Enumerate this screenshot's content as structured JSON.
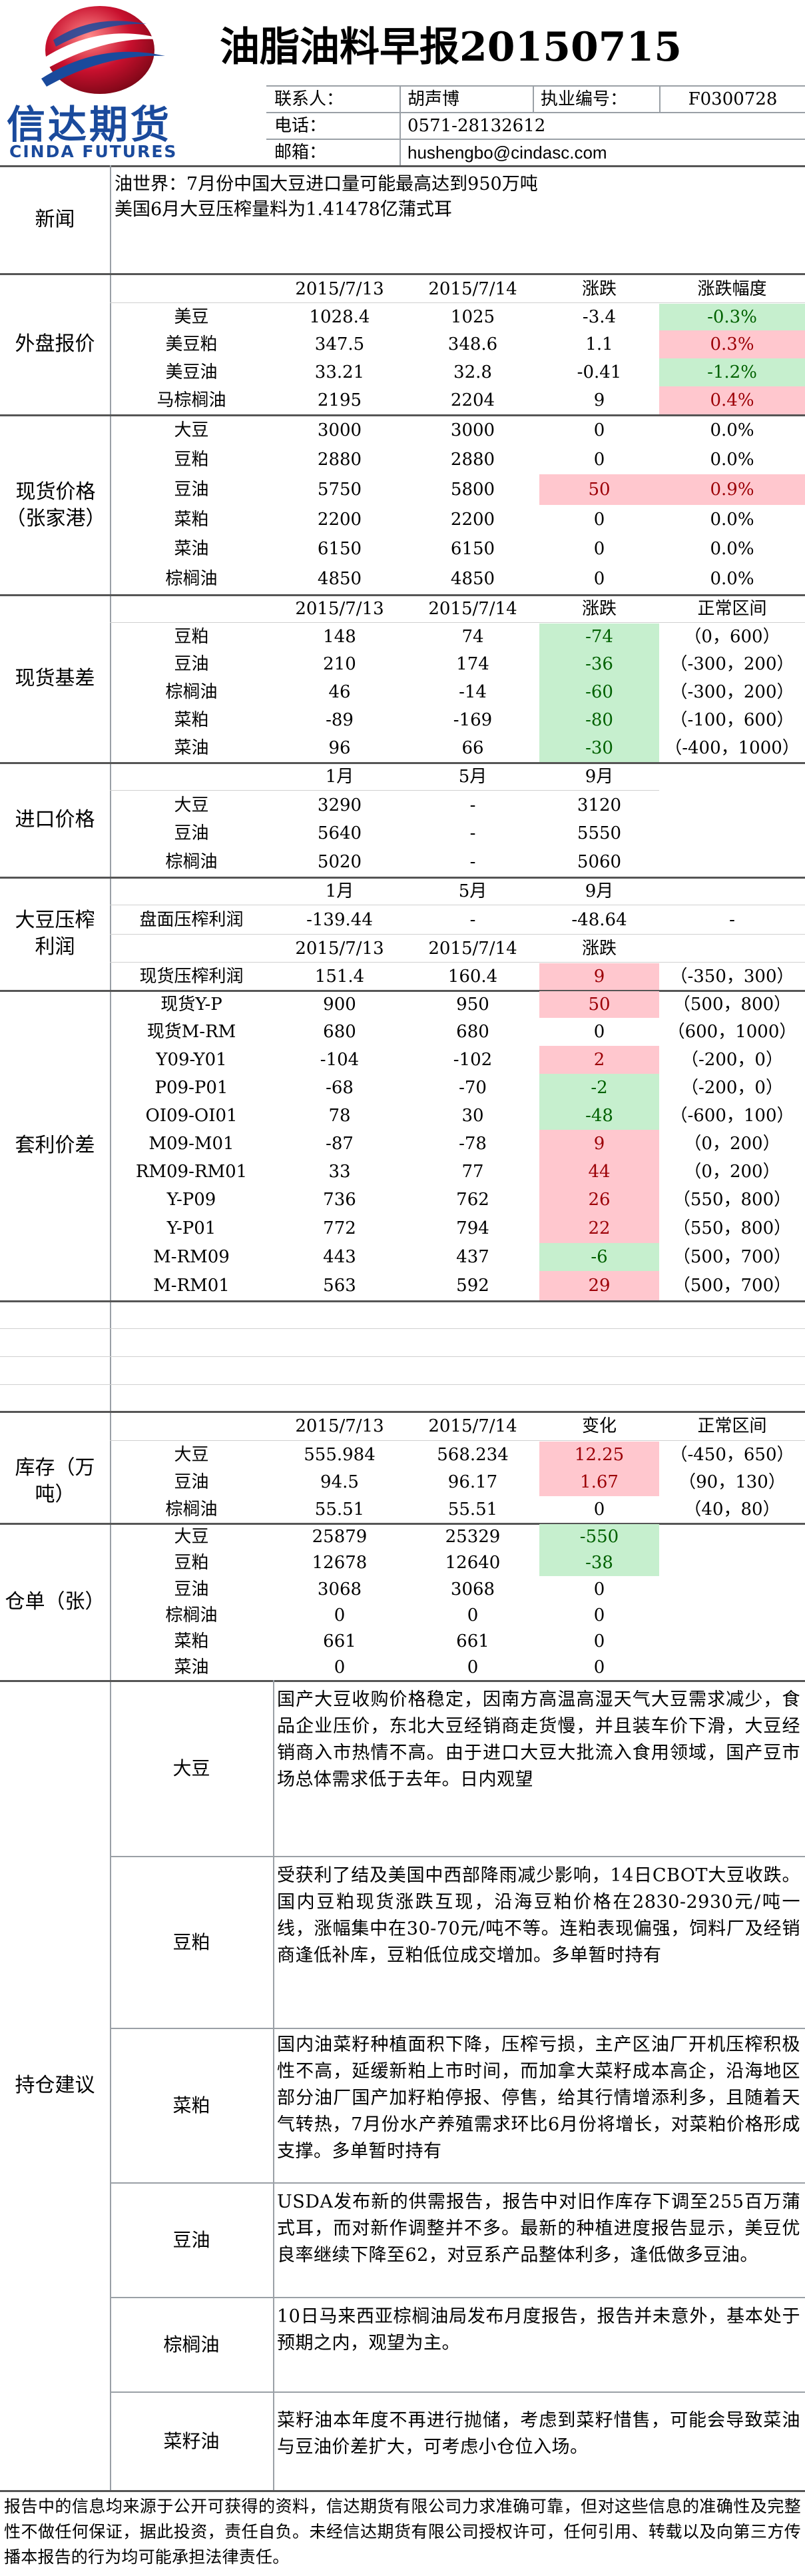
{
  "header": {
    "title": "油脂油料早报20150715",
    "logo_cn": "信达期货",
    "logo_en": "CINDA FUTURES",
    "contact_label": "联系人：",
    "contact_name": "胡声博",
    "license_label": "执业编号：",
    "license_no": "F0300728",
    "phone_label": "电话：",
    "phone": "0571-28132612",
    "email_label": "邮箱：",
    "email": "hushengbo@cindasc.com"
  },
  "news": {
    "label": "新闻",
    "lines": [
      "油世界：7月份中国大豆进口量可能最高达到950万吨",
      "美国6月大豆压榨量料为1.41478亿蒲式耳"
    ]
  },
  "external": {
    "label": "外盘报价",
    "headers": [
      "2015/7/13",
      "2015/7/14",
      "涨跌",
      "涨跌幅度"
    ],
    "rows": [
      {
        "name": "美豆",
        "d1": "1028.4",
        "d2": "1025",
        "chg": "-3.4",
        "pct": "-0.3%"
      },
      {
        "name": "美豆粕",
        "d1": "347.5",
        "d2": "348.6",
        "chg": "1.1",
        "pct": "0.3%"
      },
      {
        "name": "美豆油",
        "d1": "33.21",
        "d2": "32.8",
        "chg": "-0.41",
        "pct": "-1.2%"
      },
      {
        "name": "马棕榈油",
        "d1": "2195",
        "d2": "2204",
        "chg": "9",
        "pct": "0.4%"
      }
    ]
  },
  "spot": {
    "label": "现货价格（张家港）",
    "rows": [
      {
        "name": "大豆",
        "d1": "3000",
        "d2": "3000",
        "chg": "0",
        "pct": "0.0%"
      },
      {
        "name": "豆粕",
        "d1": "2880",
        "d2": "2880",
        "chg": "0",
        "pct": "0.0%"
      },
      {
        "name": "豆油",
        "d1": "5750",
        "d2": "5800",
        "chg": "50",
        "pct": "0.9%"
      },
      {
        "name": "菜粕",
        "d1": "2200",
        "d2": "2200",
        "chg": "0",
        "pct": "0.0%"
      },
      {
        "name": "菜油",
        "d1": "6150",
        "d2": "6150",
        "chg": "0",
        "pct": "0.0%"
      },
      {
        "name": "棕榈油",
        "d1": "4850",
        "d2": "4850",
        "chg": "0",
        "pct": "0.0%"
      }
    ]
  },
  "basis": {
    "label": "现货基差",
    "headers": [
      "2015/7/13",
      "2015/7/14",
      "涨跌",
      "正常区间"
    ],
    "rows": [
      {
        "name": "豆粕",
        "d1": "148",
        "d2": "74",
        "chg": "-74",
        "range": "（0，600）"
      },
      {
        "name": "豆油",
        "d1": "210",
        "d2": "174",
        "chg": "-36",
        "range": "（-300，200）"
      },
      {
        "name": "棕榈油",
        "d1": "46",
        "d2": "-14",
        "chg": "-60",
        "range": "（-300，200）"
      },
      {
        "name": "菜粕",
        "d1": "-89",
        "d2": "-169",
        "chg": "-80",
        "range": "（-100，600）"
      },
      {
        "name": "菜油",
        "d1": "96",
        "d2": "66",
        "chg": "-30",
        "range": "（-400，1000）"
      }
    ]
  },
  "import": {
    "label": "进口价格",
    "headers": [
      "1月",
      "5月",
      "9月"
    ],
    "rows": [
      {
        "name": "大豆",
        "m1": "3290",
        "m5": "-",
        "m9": "3120"
      },
      {
        "name": "豆油",
        "m1": "5640",
        "m5": "-",
        "m9": "5550"
      },
      {
        "name": "棕榈油",
        "m1": "5020",
        "m5": "-",
        "m9": "5060"
      }
    ]
  },
  "crush": {
    "label": "大豆压榨利润",
    "headers1": [
      "1月",
      "5月",
      "9月"
    ],
    "row1": {
      "name": "盘面压榨利润",
      "m1": "-139.44",
      "m5": "-",
      "m9": "-48.64",
      "extra": "-"
    },
    "headers2": [
      "2015/7/13",
      "2015/7/14",
      "涨跌"
    ],
    "row2": {
      "name": "现货压榨利润",
      "d1": "151.4",
      "d2": "160.4",
      "chg": "9",
      "range": "（-350，300）"
    }
  },
  "spread": {
    "label": "套利价差",
    "rows": [
      {
        "name": "现货Y-P",
        "d1": "900",
        "d2": "950",
        "chg": "50",
        "range": "（500，800）"
      },
      {
        "name": "现货M-RM",
        "d1": "680",
        "d2": "680",
        "chg": "0",
        "range": "（600，1000）"
      },
      {
        "name": "Y09-Y01",
        "d1": "-104",
        "d2": "-102",
        "chg": "2",
        "range": "（-200，0）"
      },
      {
        "name": "P09-P01",
        "d1": "-68",
        "d2": "-70",
        "chg": "-2",
        "range": "（-200，0）"
      },
      {
        "name": "OI09-OI01",
        "d1": "78",
        "d2": "30",
        "chg": "-48",
        "range": "（-600，100）"
      },
      {
        "name": "M09-M01",
        "d1": "-87",
        "d2": "-78",
        "chg": "9",
        "range": "（0，200）"
      },
      {
        "name": "RM09-RM01",
        "d1": "33",
        "d2": "77",
        "chg": "44",
        "range": "（0，200）"
      },
      {
        "name": "Y-P09",
        "d1": "736",
        "d2": "762",
        "chg": "26",
        "range": "（550，800）"
      },
      {
        "name": "Y-P01",
        "d1": "772",
        "d2": "794",
        "chg": "22",
        "range": "（550，800）"
      },
      {
        "name": "M-RM09",
        "d1": "443",
        "d2": "437",
        "chg": "-6",
        "range": "（500，700）"
      },
      {
        "name": "M-RM01",
        "d1": "563",
        "d2": "592",
        "chg": "29",
        "range": "（500，700）"
      }
    ]
  },
  "inventory": {
    "label": "库存（万吨）",
    "headers": [
      "2015/7/13",
      "2015/7/14",
      "变化",
      "正常区间"
    ],
    "rows": [
      {
        "name": "大豆",
        "d1": "555.984",
        "d2": "568.234",
        "chg": "12.25",
        "range": "（-450，650）"
      },
      {
        "name": "豆油",
        "d1": "94.5",
        "d2": "96.17",
        "chg": "1.67",
        "range": "（90，130）"
      },
      {
        "name": "棕榈油",
        "d1": "55.51",
        "d2": "55.51",
        "chg": "0",
        "range": "（40，80）"
      }
    ]
  },
  "warrant": {
    "label": "仓单（张）",
    "rows": [
      {
        "name": "大豆",
        "d1": "25879",
        "d2": "25329",
        "chg": "-550"
      },
      {
        "name": "豆粕",
        "d1": "12678",
        "d2": "12640",
        "chg": "-38"
      },
      {
        "name": "豆油",
        "d1": "3068",
        "d2": "3068",
        "chg": "0"
      },
      {
        "name": "棕榈油",
        "d1": "0",
        "d2": "0",
        "chg": "0"
      },
      {
        "name": "菜粕",
        "d1": "661",
        "d2": "661",
        "chg": "0"
      },
      {
        "name": "菜油",
        "d1": "0",
        "d2": "0",
        "chg": "0"
      }
    ]
  },
  "advice": {
    "label": "持仓建议",
    "items": [
      {
        "name": "大豆",
        "text": "国产大豆收购价格稳定，因南方高温高湿天气大豆需求减少，食品企业压价，东北大豆经销商走货慢，并且装车价下滑，大豆经销商入市热情不高。由于进口大豆大批流入食用领域，国产豆市场总体需求低于去年。日内观望"
      },
      {
        "name": "豆粕",
        "text": "受获利了结及美国中西部降雨减少影响，14日CBOT大豆收跌。国内豆粕现货涨跌互现，沿海豆粕价格在2830-2930元/吨一线，涨幅集中在30-70元/吨不等。连粕表现偏强，饲料厂及经销商逢低补库，豆粕低位成交增加。多单暂时持有"
      },
      {
        "name": "菜粕",
        "text": "国内油菜籽种植面积下降，压榨亏损，主产区油厂开机压榨积极性不高，延缓新粕上市时间，而加拿大菜籽成本高企，沿海地区部分油厂国产加籽粕停报、停售，给其行情增添利多，且随着天气转热，7月份水产养殖需求环比6月份将增长，对菜粕价格形成支撑。多单暂时持有"
      },
      {
        "name": "豆油",
        "text": "USDA发布新的供需报告，报告中对旧作库存下调至255百万蒲式耳，而对新作调整并不多。最新的种植进度报告显示，美豆优良率继续下降至62，对豆系产品整体利多，逢低做多豆油。"
      },
      {
        "name": "棕榈油",
        "text": "10日马来西亚棕榈油局发布月度报告，报告并未意外，基本处于预期之内，观望为主。"
      },
      {
        "name": "菜籽油",
        "text": "菜籽油本年度不再进行抛储，考虑到菜籽惜售，可能会导致菜油与豆油价差扩大，可考虑小仓位入场。"
      }
    ]
  },
  "disclaimer": "报告中的信息均来源于公开可获得的资料，信达期货有限公司力求准确可靠，但对这些信息的准确性及完整性不做任何保证，据此投资，责任自负。未经信达期货有限公司授权许可，任何引用、转载以及向第三方传播本报告的行为均可能承担法律责任。",
  "colors": {
    "increase_bg": "#ffc7ce",
    "decrease_bg": "#c6efce",
    "logo_red": "#c8102e",
    "logo_blue": "#1a4a9c"
  }
}
